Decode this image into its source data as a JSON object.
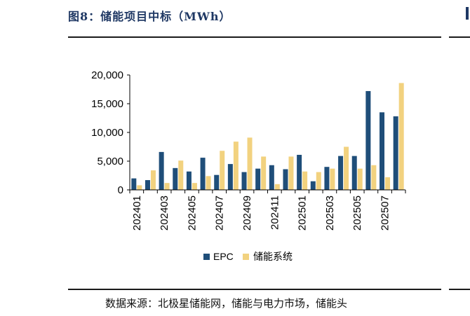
{
  "header": {
    "title": "图8：储能项目中标（MWh）"
  },
  "footer": {
    "source": "数据来源：北极星储能网，储能与电力市场，储能头"
  },
  "colors": {
    "epc": "#1f4e79",
    "storage": "#f2d27f",
    "axis": "#000000"
  },
  "chart_data": {
    "type": "bar",
    "categories": [
      "202401",
      "202402",
      "202403",
      "202404",
      "202405",
      "202406",
      "202407",
      "202408",
      "202409",
      "202410",
      "202411",
      "202412",
      "202501",
      "202502",
      "202503",
      "202504",
      "202505",
      "202506",
      "202507",
      "202508"
    ],
    "tick_labels": [
      "202401",
      "",
      "202403",
      "",
      "202405",
      "",
      "202407",
      "",
      "202409",
      "",
      "202411",
      "",
      "202501",
      "",
      "202503",
      "",
      "202505",
      "",
      "202507",
      ""
    ],
    "series": [
      {
        "name": "EPC",
        "values": [
          2000,
          1700,
          6600,
          3800,
          3200,
          5600,
          2600,
          4500,
          3100,
          3700,
          4300,
          3600,
          6100,
          1500,
          4000,
          5900,
          5900,
          17200,
          13500,
          12800
        ]
      },
      {
        "name": "储能系统",
        "values": [
          800,
          3400,
          1200,
          5100,
          1200,
          2400,
          6800,
          8400,
          9100,
          5800,
          1000,
          5800,
          3200,
          3100,
          3700,
          7500,
          3700,
          4300,
          2200,
          18600
        ]
      }
    ],
    "ylim": [
      0,
      20000
    ],
    "y_ticks": [
      0,
      5000,
      10000,
      15000,
      20000
    ],
    "y_tick_labels": [
      "0",
      "5,000",
      "10,000",
      "15,000",
      "20,000"
    ],
    "grid": false,
    "legend": "bottom",
    "xlabel": "",
    "ylabel": ""
  }
}
